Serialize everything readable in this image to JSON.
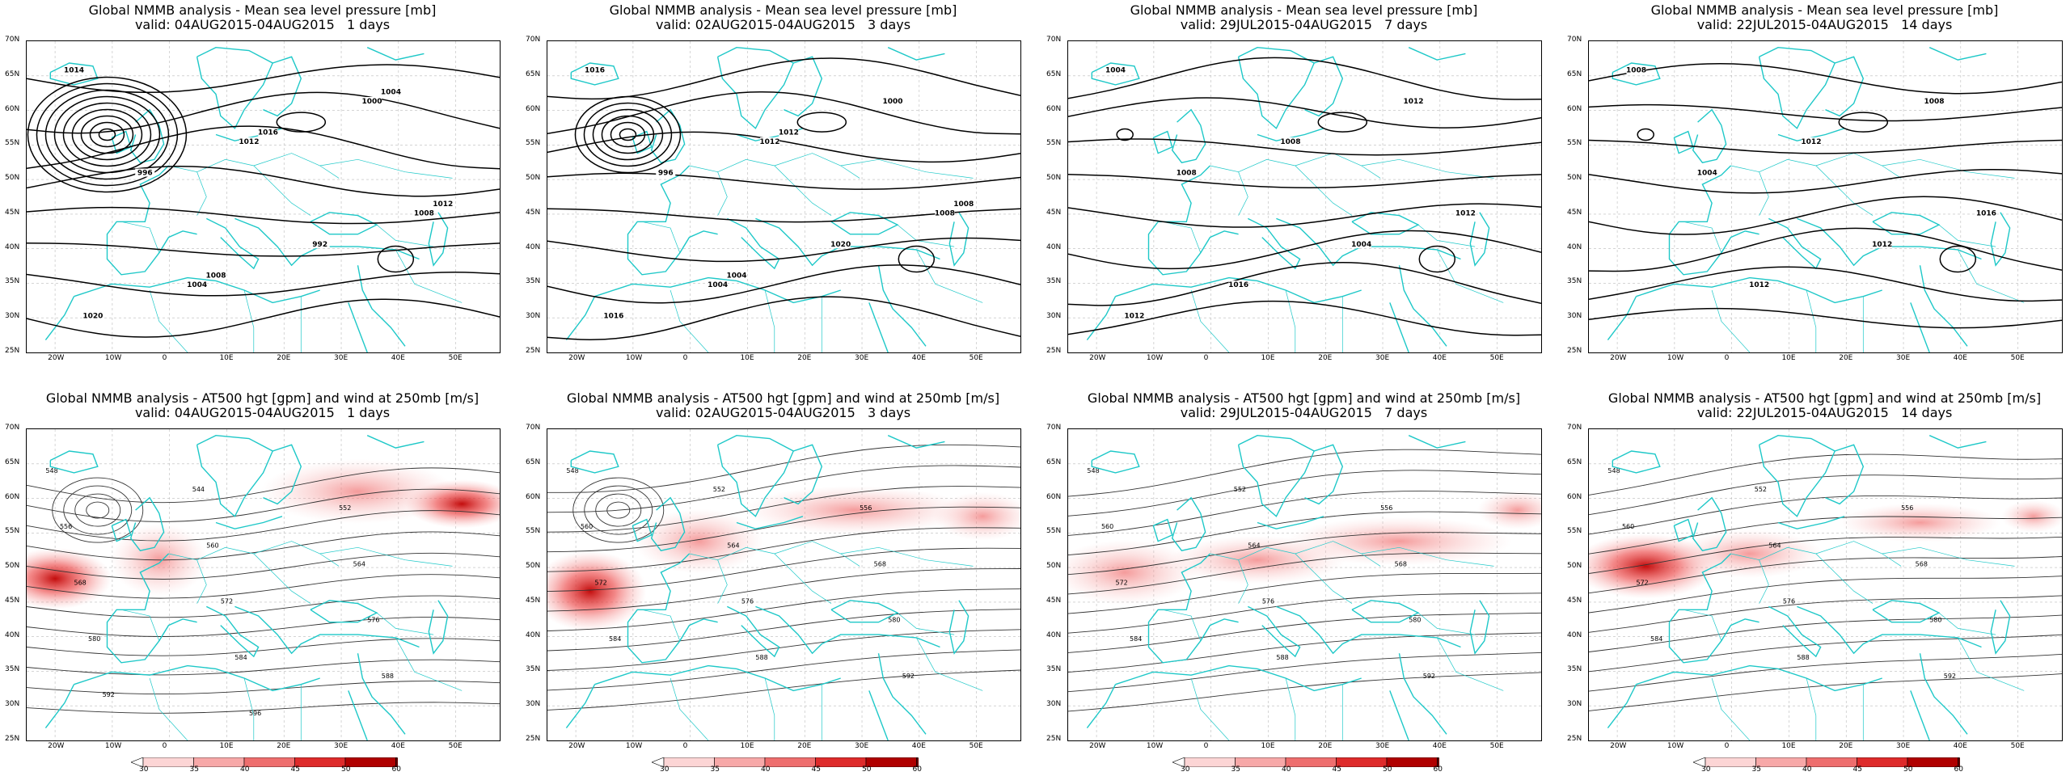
{
  "rows": [
    {
      "title_line1": "Global NMMB analysis - Mean sea level pressure [mb]",
      "panels": [
        {
          "valid": "valid: 04AUG2015-04AUG2015   1 days"
        },
        {
          "valid": "valid: 02AUG2015-04AUG2015   3 days"
        },
        {
          "valid": "valid: 29JUL2015-04AUG2015   7 days"
        },
        {
          "valid": "valid: 22JUL2015-04AUG2015   14 days"
        }
      ]
    },
    {
      "title_line1": "Global NMMB analysis - AT500 hgt [gpm] and wind at 250mb [m/s]",
      "panels": [
        {
          "valid": "valid: 04AUG2015-04AUG2015   1 days"
        },
        {
          "valid": "valid: 02AUG2015-04AUG2015   3 days"
        },
        {
          "valid": "valid: 29JUL2015-04AUG2015   7 days"
        },
        {
          "valid": "valid: 22JUL2015-04AUG2015   14 days"
        }
      ]
    }
  ],
  "lat_ticks": [
    "70N",
    "65N",
    "60N",
    "55N",
    "50N",
    "45N",
    "40N",
    "35N",
    "30N",
    "25N"
  ],
  "lon_ticks": [
    "20W",
    "10W",
    "0",
    "10E",
    "20E",
    "30E",
    "40E",
    "50E"
  ],
  "colorbar": {
    "ticks": [
      "30",
      "35",
      "40",
      "45",
      "50",
      "60"
    ],
    "colors": [
      "#ffffff",
      "#fcd5d5",
      "#f7a8a8",
      "#ee6e6e",
      "#de2b2b",
      "#b00000",
      "#600000"
    ]
  },
  "mslp_labels": [
    [
      "1014",
      "1012",
      "1008",
      "1004",
      "1000",
      "996",
      "992",
      "1020",
      "1016",
      "1012",
      "1008",
      "1004"
    ],
    [
      "1016",
      "1012",
      "1008",
      "1004",
      "1000",
      "996",
      "1020",
      "1016",
      "1012",
      "1008",
      "1004"
    ],
    [
      "1004",
      "1008",
      "1012",
      "1016",
      "1012",
      "1008",
      "1004",
      "1012"
    ],
    [
      "1008",
      "1012",
      "1016",
      "1012",
      "1008",
      "1004",
      "1012"
    ]
  ],
  "hgt_labels": [
    [
      "548",
      "544",
      "552",
      "556",
      "560",
      "564",
      "568",
      "572",
      "576",
      "580",
      "584",
      "588",
      "592",
      "596"
    ],
    [
      "548",
      "552",
      "556",
      "560",
      "564",
      "568",
      "572",
      "576",
      "580",
      "584",
      "588",
      "592"
    ],
    [
      "548",
      "552",
      "556",
      "560",
      "564",
      "568",
      "572",
      "576",
      "580",
      "584",
      "588",
      "592"
    ],
    [
      "548",
      "552",
      "556",
      "560",
      "564",
      "568",
      "572",
      "576",
      "580",
      "584",
      "588",
      "592"
    ]
  ]
}
